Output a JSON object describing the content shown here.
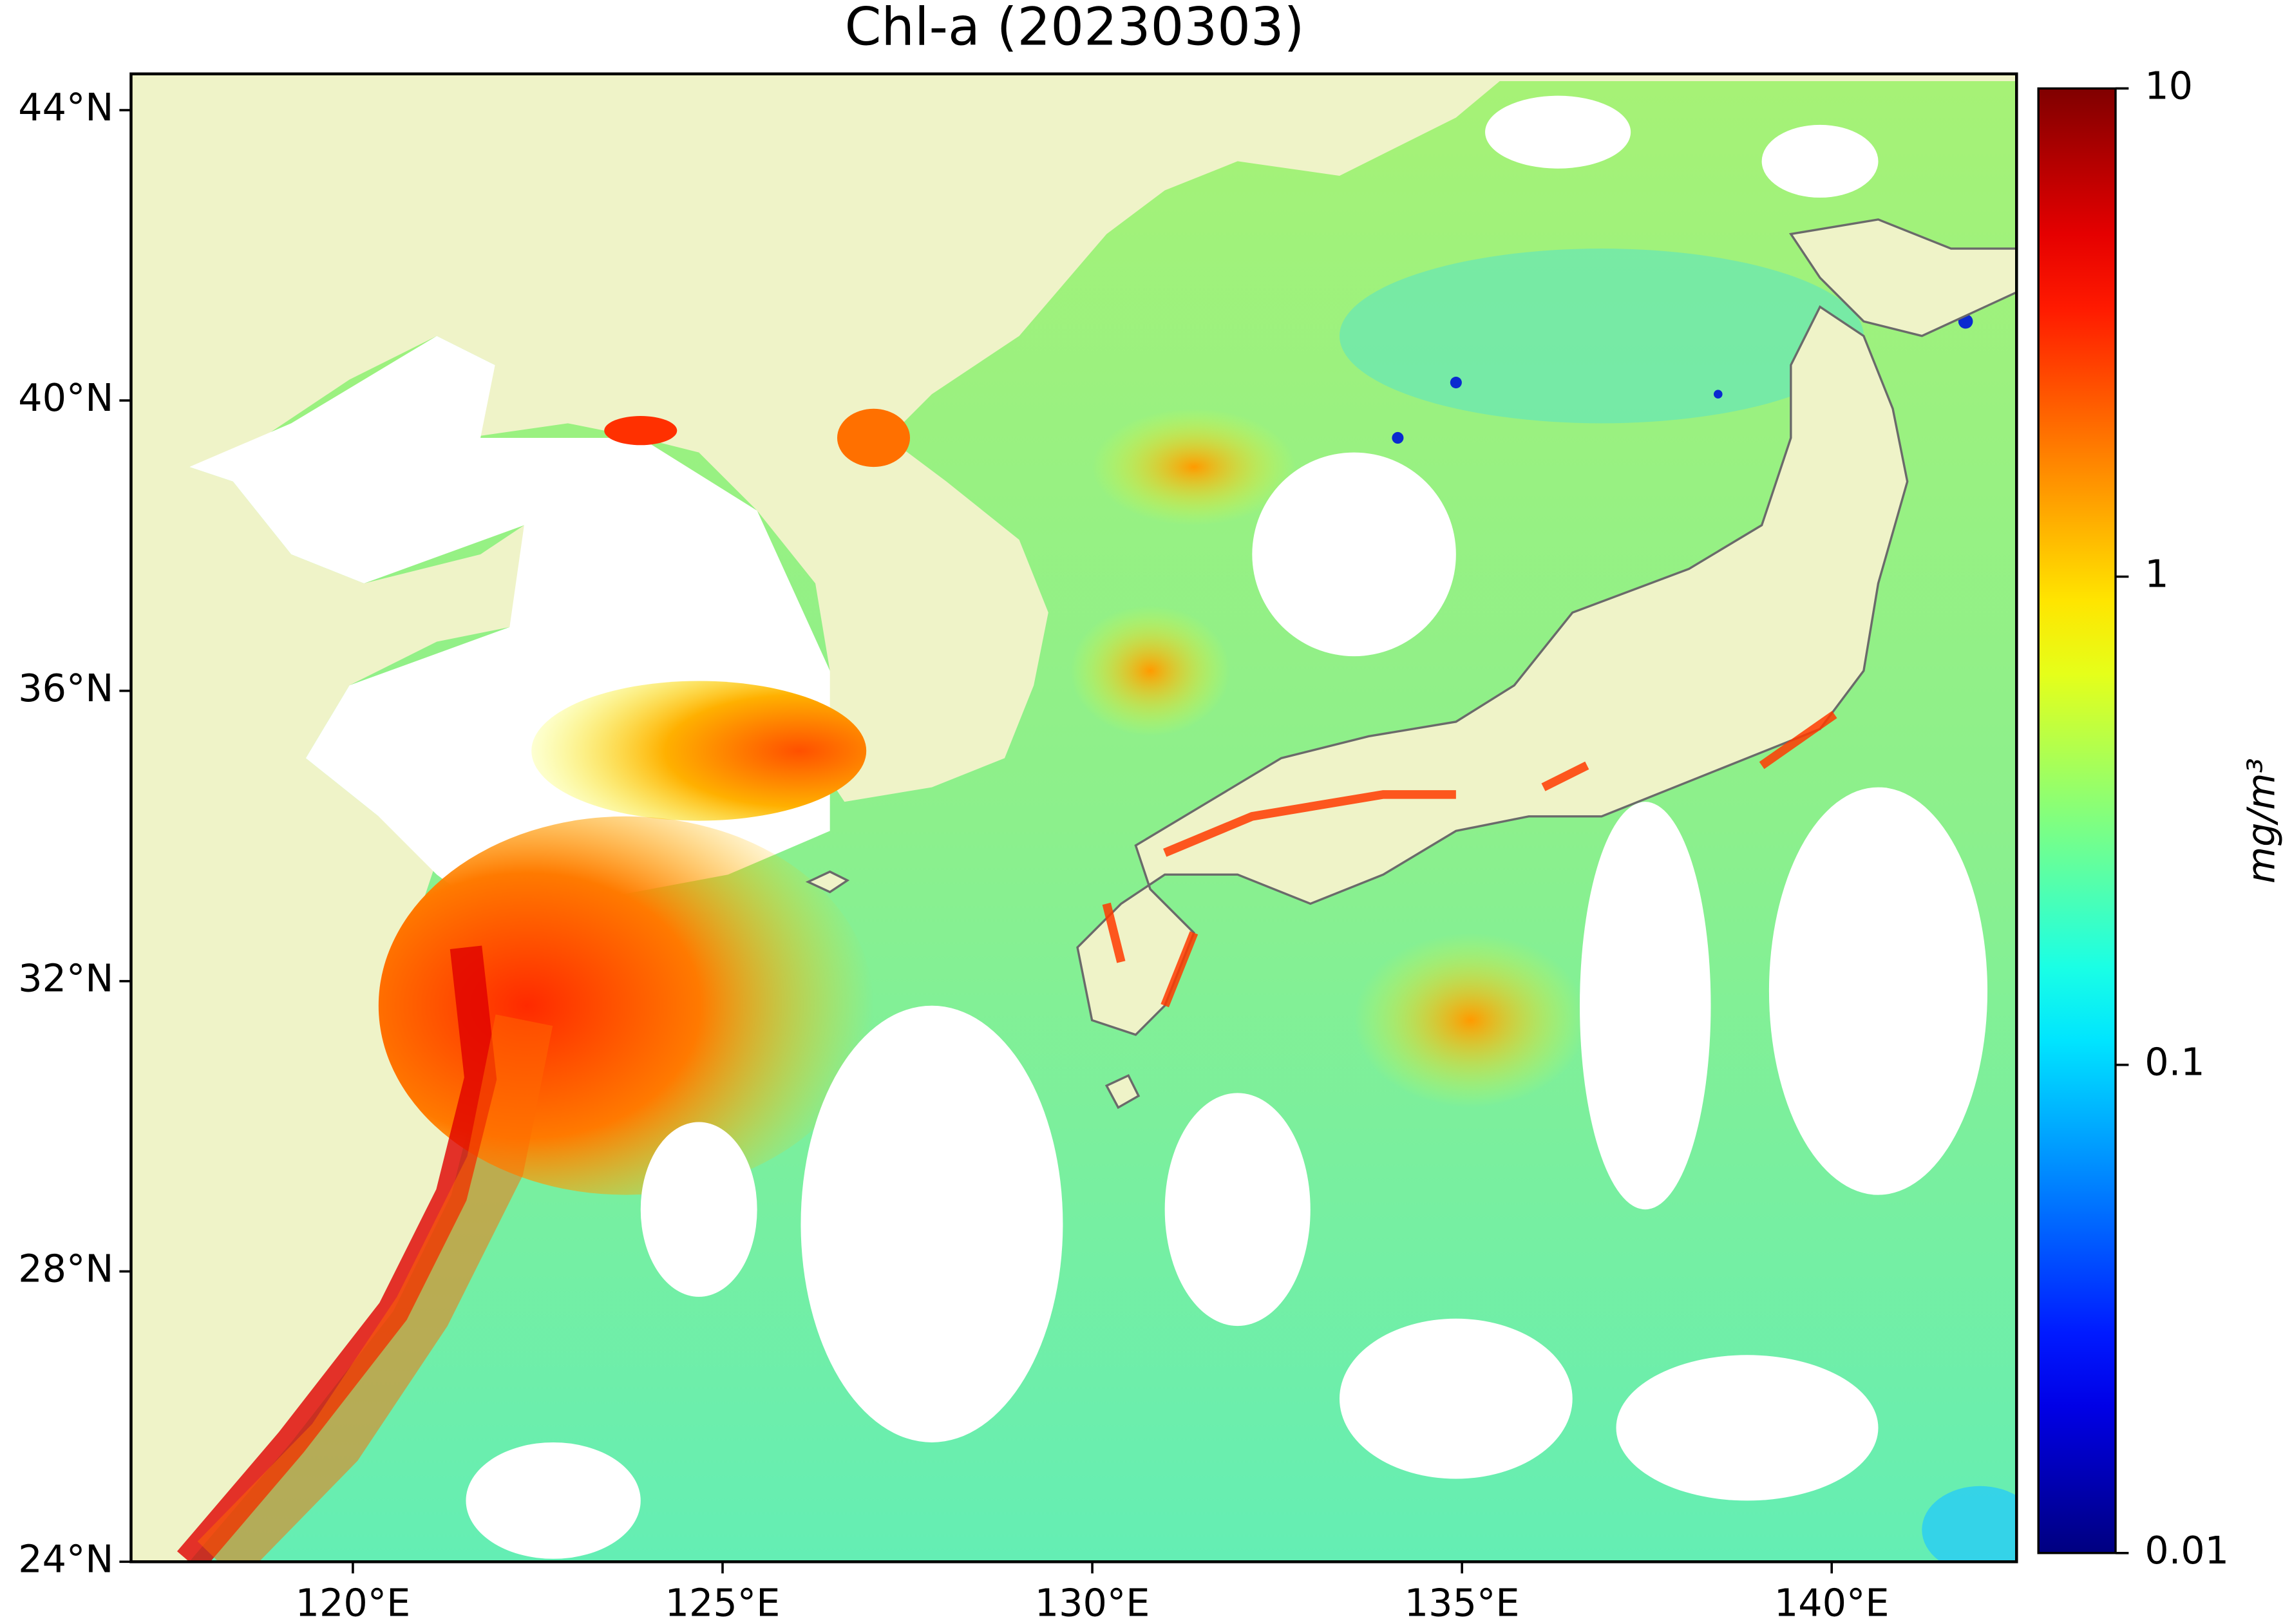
{
  "chart_data": {
    "type": "map",
    "title": "Chl-a (20230303)",
    "xlim": [
      117,
      142.5
    ],
    "ylim": [
      24,
      44.5
    ],
    "xticks": [
      {
        "value": 120,
        "label": "120°E"
      },
      {
        "value": 125,
        "label": "125°E"
      },
      {
        "value": 130,
        "label": "130°E"
      },
      {
        "value": 135,
        "label": "135°E"
      },
      {
        "value": 140,
        "label": "140°E"
      }
    ],
    "yticks": [
      {
        "value": 24,
        "label": "24°N"
      },
      {
        "value": 28,
        "label": "28°N"
      },
      {
        "value": 32,
        "label": "32°N"
      },
      {
        "value": 36,
        "label": "36°N"
      },
      {
        "value": 40,
        "label": "40°N"
      },
      {
        "value": 44,
        "label": "44°N"
      }
    ],
    "colorbar": {
      "label": "mg/m³",
      "scale": "log",
      "colormap": "jet",
      "lim": [
        0.01,
        10
      ],
      "ticks": [
        0.01,
        0.1,
        1,
        10
      ]
    }
  }
}
